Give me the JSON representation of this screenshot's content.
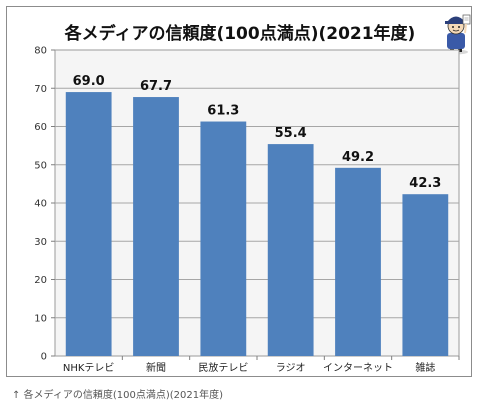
{
  "chart_data": {
    "type": "bar",
    "title": "各メディアの信頼度(100点満点)(2021年度)",
    "categories": [
      "NHKテレビ",
      "新聞",
      "民放テレビ",
      "ラジオ",
      "インターネット",
      "雑誌"
    ],
    "values": [
      69.0,
      67.7,
      61.3,
      55.4,
      49.2,
      42.3
    ],
    "value_labels": [
      "69.0",
      "67.7",
      "61.3",
      "55.4",
      "49.2",
      "42.3"
    ],
    "xlabel": "",
    "ylabel": "",
    "ylim": [
      0,
      80
    ],
    "yticks": [
      0,
      10,
      20,
      30,
      40,
      50,
      60,
      70,
      80
    ],
    "grid": true,
    "legend": "none",
    "bar_color": "#4f81bd",
    "plot_background": "#f5f5f5"
  },
  "mascot_icon": "mascot-character-icon",
  "caption": "↑ 各メディアの信頼度(100点満点)(2021年度)"
}
